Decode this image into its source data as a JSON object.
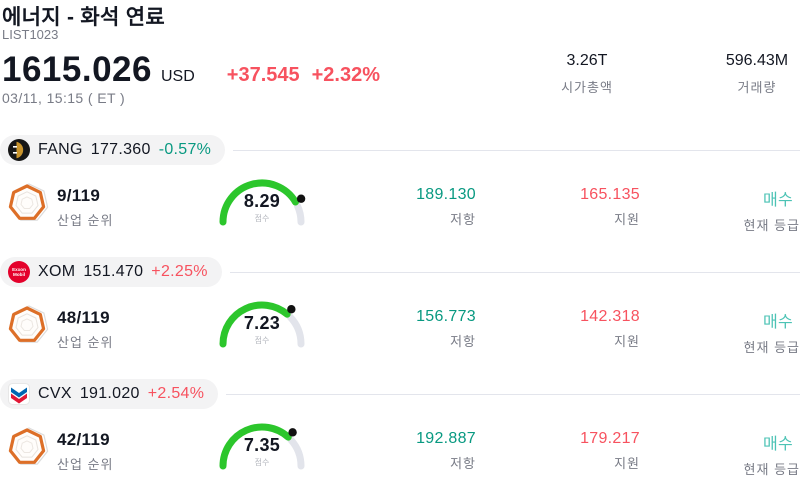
{
  "header": {
    "title": "에너지 - 화석 연료",
    "list_id": "LIST1023",
    "price": "1615.026",
    "currency": "USD",
    "change": "+37.545",
    "change_pct": "+2.32%",
    "datetime": "03/11, 15:15 ( ET )",
    "stats": [
      {
        "value": "3.26T",
        "label": "시가총액"
      },
      {
        "value": "596.43M",
        "label": "거래량"
      }
    ]
  },
  "rows": [
    {
      "ticker": "FANG",
      "price": "177.360",
      "change": "-0.57%",
      "change_color": "#089981",
      "logo": "diamondback-energy",
      "rank": "9/119",
      "rank_label": "산업 순위",
      "score": 8.29,
      "score_label": "점수",
      "resistance": "189.130",
      "resistance_label": "저항",
      "support": "165.135",
      "support_label": "지원",
      "rating": "매수",
      "rating_label": "현재 등급"
    },
    {
      "ticker": "XOM",
      "price": "151.470",
      "change": "+2.25%",
      "change_color": "#f7525f",
      "logo": "exxon-mobil",
      "rank": "48/119",
      "rank_label": "산업 순위",
      "score": 7.23,
      "score_label": "점수",
      "resistance": "156.773",
      "resistance_label": "저항",
      "support": "142.318",
      "support_label": "지원",
      "rating": "매수",
      "rating_label": "현재 등급"
    },
    {
      "ticker": "CVX",
      "price": "191.020",
      "change": "+2.54%",
      "change_color": "#f7525f",
      "logo": "chevron",
      "rank": "42/119",
      "rank_label": "산업 순위",
      "score": 7.35,
      "score_label": "점수",
      "resistance": "192.887",
      "resistance_label": "저항",
      "support": "179.217",
      "support_label": "지원",
      "rating": "매수",
      "rating_label": "현재 등급"
    }
  ],
  "colors": {
    "up": "#f7525f",
    "down": "#089981",
    "resistance": "#089981",
    "support": "#f7525f",
    "rating": "#4cc3b5",
    "gauge_green": "#2cc62c",
    "gauge_track": "#e2e4eb",
    "gauge_dot": "#111111"
  }
}
